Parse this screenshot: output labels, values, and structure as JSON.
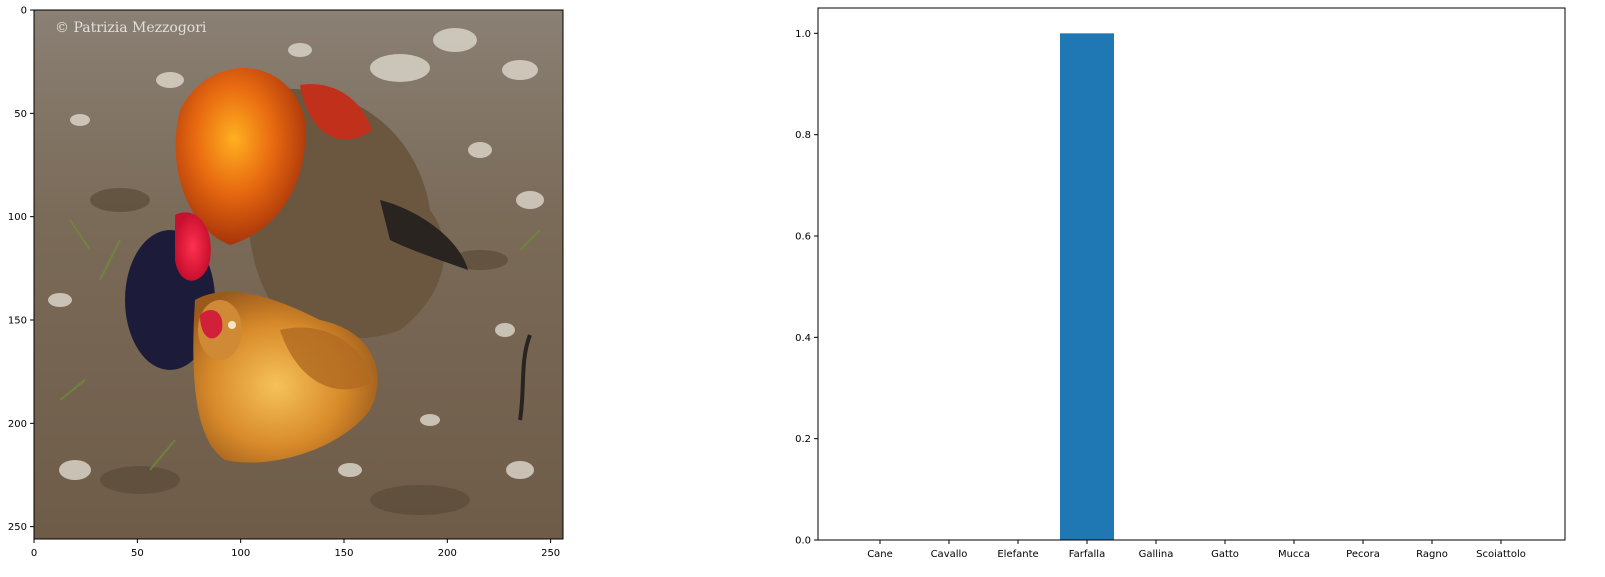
{
  "image_panel": {
    "watermark": "© Patrizia Mezzogori",
    "x_ticks": [
      "0",
      "50",
      "100",
      "150",
      "200",
      "250"
    ],
    "y_ticks": [
      "0",
      "50",
      "100",
      "150",
      "200",
      "250"
    ],
    "x_tick_values": [
      0,
      50,
      100,
      150,
      200,
      250
    ],
    "y_tick_values": [
      0,
      50,
      100,
      150,
      200,
      250
    ],
    "extent": [
      0,
      256
    ]
  },
  "chart_data": {
    "type": "bar",
    "categories": [
      "Cane",
      "Cavallo",
      "Elefante",
      "Farfalla",
      "Gallina",
      "Gatto",
      "Mucca",
      "Pecora",
      "Ragno",
      "Scoiattolo"
    ],
    "values": [
      0,
      0,
      0,
      1.0,
      0,
      0,
      0,
      0,
      0,
      0
    ],
    "y_ticks": [
      "0.0",
      "0.2",
      "0.4",
      "0.6",
      "0.8",
      "1.0"
    ],
    "ylim": [
      0,
      1.05
    ],
    "bar_color": "#1f77b4",
    "grid": false,
    "title": "",
    "xlabel": "",
    "ylabel": ""
  }
}
